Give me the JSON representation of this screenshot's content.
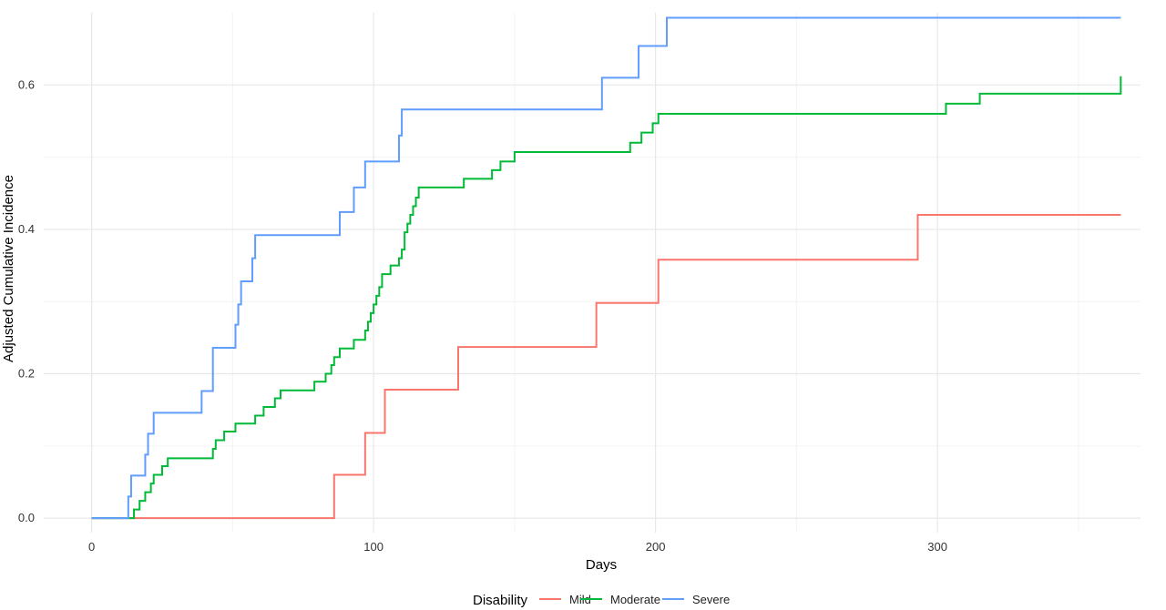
{
  "chart_data": {
    "type": "line",
    "step": true,
    "title": "",
    "xlabel": "Days",
    "ylabel": "Adjusted Cumulative Incidence",
    "xlim": [
      -17,
      372
    ],
    "ylim": [
      -0.02,
      0.7
    ],
    "xticks": [
      0,
      100,
      200,
      300
    ],
    "xtick_labels": [
      "0",
      "100",
      "200",
      "300"
    ],
    "yticks": [
      0.0,
      0.2,
      0.4,
      0.6
    ],
    "ytick_labels": [
      "0.0",
      "0.2",
      "0.4",
      "0.6"
    ],
    "grid": true,
    "legend": {
      "title": "Disability",
      "position": "bottom"
    },
    "series": [
      {
        "name": "Mild",
        "color": "#F8766D",
        "points": [
          [
            0,
            0.0
          ],
          [
            86,
            0.06
          ],
          [
            97,
            0.118
          ],
          [
            104,
            0.178
          ],
          [
            130,
            0.237
          ],
          [
            179,
            0.298
          ],
          [
            201,
            0.358
          ],
          [
            293,
            0.42
          ],
          [
            365,
            0.42
          ]
        ]
      },
      {
        "name": "Moderate",
        "color": "#00BA38",
        "points": [
          [
            0,
            0.0
          ],
          [
            14,
            0.0
          ],
          [
            15,
            0.012
          ],
          [
            17,
            0.024
          ],
          [
            19,
            0.036
          ],
          [
            21,
            0.048
          ],
          [
            22,
            0.06
          ],
          [
            25,
            0.072
          ],
          [
            27,
            0.083
          ],
          [
            43,
            0.096
          ],
          [
            44,
            0.108
          ],
          [
            47,
            0.12
          ],
          [
            51,
            0.131
          ],
          [
            58,
            0.142
          ],
          [
            61,
            0.154
          ],
          [
            65,
            0.166
          ],
          [
            67,
            0.177
          ],
          [
            79,
            0.189
          ],
          [
            83,
            0.2
          ],
          [
            85,
            0.212
          ],
          [
            86,
            0.223
          ],
          [
            88,
            0.235
          ],
          [
            93,
            0.247
          ],
          [
            97,
            0.26
          ],
          [
            98,
            0.272
          ],
          [
            99,
            0.284
          ],
          [
            100,
            0.296
          ],
          [
            101,
            0.308
          ],
          [
            102,
            0.32
          ],
          [
            103,
            0.338
          ],
          [
            106,
            0.35
          ],
          [
            109,
            0.36
          ],
          [
            110,
            0.372
          ],
          [
            111,
            0.396
          ],
          [
            112,
            0.408
          ],
          [
            113,
            0.42
          ],
          [
            114,
            0.432
          ],
          [
            115,
            0.444
          ],
          [
            116,
            0.458
          ],
          [
            132,
            0.47
          ],
          [
            142,
            0.482
          ],
          [
            145,
            0.494
          ],
          [
            150,
            0.507
          ],
          [
            191,
            0.52
          ],
          [
            195,
            0.534
          ],
          [
            199,
            0.547
          ],
          [
            201,
            0.56
          ],
          [
            303,
            0.574
          ],
          [
            315,
            0.588
          ],
          [
            365,
            0.612
          ]
        ]
      },
      {
        "name": "Severe",
        "color": "#619CFF",
        "points": [
          [
            0,
            0.0
          ],
          [
            12,
            0.0
          ],
          [
            13,
            0.03
          ],
          [
            14,
            0.059
          ],
          [
            19,
            0.088
          ],
          [
            20,
            0.117
          ],
          [
            22,
            0.146
          ],
          [
            39,
            0.176
          ],
          [
            43,
            0.236
          ],
          [
            51,
            0.268
          ],
          [
            52,
            0.296
          ],
          [
            53,
            0.328
          ],
          [
            57,
            0.36
          ],
          [
            58,
            0.392
          ],
          [
            88,
            0.424
          ],
          [
            93,
            0.458
          ],
          [
            97,
            0.494
          ],
          [
            109,
            0.53
          ],
          [
            110,
            0.566
          ],
          [
            181,
            0.61
          ],
          [
            194,
            0.654
          ],
          [
            204,
            0.693
          ],
          [
            365,
            0.693
          ]
        ]
      }
    ]
  }
}
